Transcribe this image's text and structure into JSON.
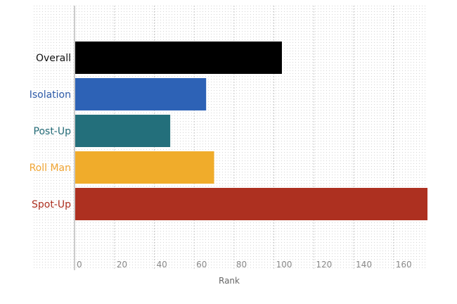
{
  "chart_data": {
    "type": "bar",
    "orientation": "horizontal",
    "categories": [
      "Overall",
      "Isolation",
      "Post-Up",
      "Roll Man",
      "Spot-Up"
    ],
    "values": [
      104,
      66,
      48,
      70,
      177
    ],
    "colors": [
      "#000000",
      "#2d62b6",
      "#236f7b",
      "#f0ac2b",
      "#ad3020"
    ],
    "label_colors": [
      "#111111",
      "#2d5aa8",
      "#256c78",
      "#f0a534",
      "#ad3020"
    ],
    "title": "",
    "xlabel": "Rank",
    "ylabel": "",
    "xticks": [
      0,
      20,
      40,
      60,
      80,
      100,
      120,
      140,
      160
    ],
    "xlim": [
      0,
      177
    ],
    "grid": true,
    "legend": "none"
  }
}
